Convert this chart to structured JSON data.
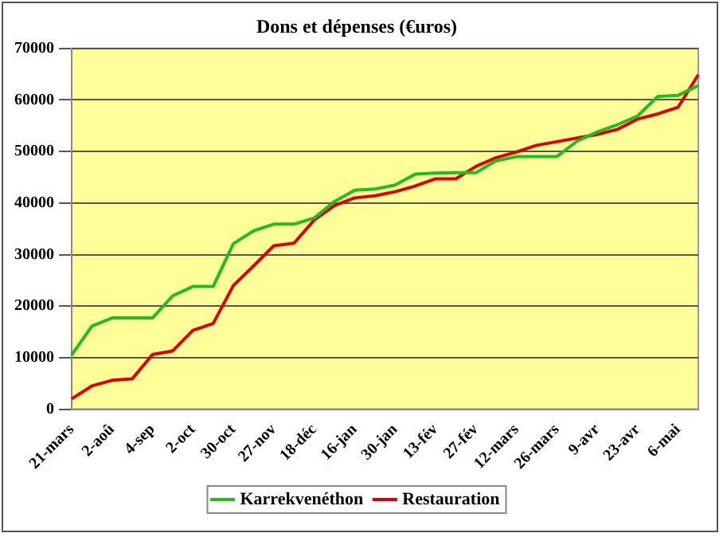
{
  "chart_data": {
    "type": "line",
    "title": "Dons et dépenses (€uros)",
    "categories": [
      "21-mars",
      null,
      "2-aoû",
      null,
      "4-sep",
      null,
      "2-oct",
      null,
      "30-oct",
      null,
      "27-nov",
      null,
      "18-déc",
      null,
      "16-jan",
      null,
      "30-jan",
      null,
      "13-fév",
      null,
      "27-fév",
      null,
      "12-mars",
      null,
      "26-mars",
      null,
      "9-avr",
      null,
      "23-avr",
      null,
      "6-mai",
      null
    ],
    "series": [
      {
        "name": "Karrekvenéthon",
        "color": "#22bb22",
        "values": [
          10500,
          16100,
          17700,
          17700,
          17700,
          22000,
          23800,
          23800,
          32100,
          34600,
          35900,
          35900,
          37100,
          40300,
          42500,
          42700,
          43500,
          45600,
          45800,
          45900,
          45900,
          48200,
          49000,
          49000,
          49000,
          52000,
          53800,
          55200,
          56900,
          60700,
          60900,
          62800
        ]
      },
      {
        "name": "Restauration",
        "color": "#e00000",
        "values": [
          2000,
          4500,
          5600,
          5900,
          10600,
          11300,
          15300,
          16600,
          24000,
          27800,
          31700,
          32200,
          36700,
          39500,
          41000,
          41400,
          42200,
          43300,
          44700,
          44700,
          47100,
          48800,
          49900,
          51200,
          51900,
          52600,
          53300,
          54300,
          56300,
          57300,
          58600,
          64900
        ]
      }
    ],
    "ylim": [
      0,
      70000
    ],
    "yticks": [
      0,
      10000,
      20000,
      30000,
      40000,
      50000,
      60000,
      70000
    ],
    "grid": "y",
    "legend": "bottom",
    "marker": "none",
    "line_style": "solid"
  }
}
